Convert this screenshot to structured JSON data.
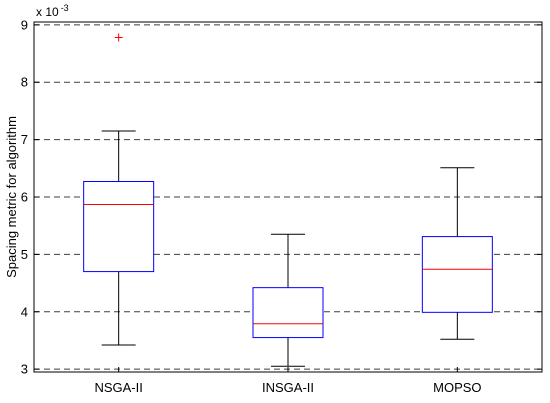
{
  "chart_data": {
    "type": "boxplot",
    "title": "",
    "xlabel": "",
    "ylabel": "Spacing metric for algorithm",
    "y_multiplier": {
      "base": "x 10",
      "exponent": "-3"
    },
    "ylim": [
      2.95,
      9.05
    ],
    "yticks": [
      3,
      4,
      5,
      6,
      7,
      8,
      9
    ],
    "grid": "horizontal dashed",
    "categories": [
      "NSGA-II",
      "INSGA-II",
      "MOPSO"
    ],
    "boxes": [
      {
        "name": "NSGA-II",
        "whisker_low": 3.42,
        "q1": 4.7,
        "median": 5.87,
        "q3": 6.27,
        "whisker_high": 7.15,
        "outliers": [
          8.78
        ]
      },
      {
        "name": "INSGA-II",
        "whisker_low": 3.05,
        "q1": 3.55,
        "median": 3.79,
        "q3": 4.42,
        "whisker_high": 5.35,
        "outliers": []
      },
      {
        "name": "MOPSO",
        "whisker_low": 3.52,
        "q1": 3.99,
        "median": 4.74,
        "q3": 5.31,
        "whisker_high": 6.51,
        "outliers": []
      }
    ],
    "colors": {
      "box": "#0000ff",
      "median": "#ff0000",
      "whisker": "#000000",
      "outlier": "#ff0000",
      "grid": "#000000"
    }
  }
}
